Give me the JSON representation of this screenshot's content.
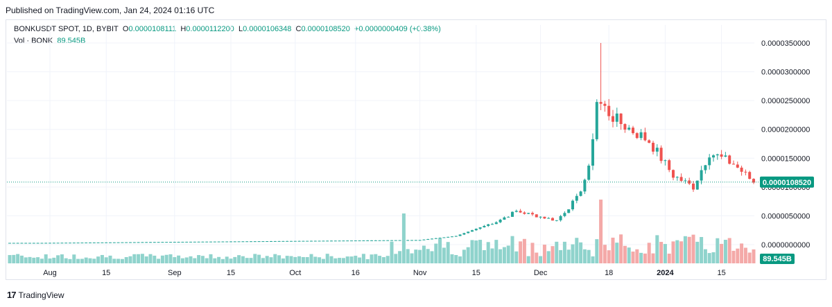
{
  "header": {
    "published": "Published on TradingView.com, Jan 24, 2024 01:16 UTC"
  },
  "legend": {
    "symbol": "BONKUSDT SPOT, 1D, BYBIT",
    "o_label": "O",
    "o": "0.0000108111",
    "h_label": "H",
    "h": "0.0000112200",
    "l_label": "L",
    "l": "0.0000106348",
    "c_label": "C",
    "c": "0.0000108520",
    "change": "+0.0000000409 (+0.38%)",
    "vol_label": "Vol · BONK",
    "vol": "89.545B"
  },
  "footer": {
    "brand": "TradingView"
  },
  "colors": {
    "up": "#26a69a",
    "down": "#ef5350",
    "vol_up": "#8fd3cc",
    "vol_down": "#f4a9a8",
    "price_tag": "#089981"
  },
  "chart_data": {
    "type": "candlestick",
    "symbol": "BONKUSDT",
    "y_ticks": [
      "0.0000000000",
      "0.0000050000",
      "0.0000100000",
      "0.0000150000",
      "0.0000200000",
      "0.0000250000",
      "0.0000300000",
      "0.0000350000"
    ],
    "ylim": [
      0,
      3.55e-05
    ],
    "x_ticks": [
      "Aug",
      "15",
      "Sep",
      "15",
      "Oct",
      "16",
      "Nov",
      "15",
      "Dec",
      "18",
      "2024",
      "15"
    ],
    "last_price": "0.0000108520",
    "last_volume": "89.545B",
    "price_keypoints": [
      {
        "date": "2023-07-30",
        "close": 3e-07
      },
      {
        "date": "2023-11-01",
        "close": 8e-07
      },
      {
        "date": "2023-11-10",
        "close": 1.5e-06
      },
      {
        "date": "2023-11-20",
        "close": 4e-06
      },
      {
        "date": "2023-11-25",
        "close": 5.8e-06
      },
      {
        "date": "2023-12-05",
        "close": 4.2e-06
      },
      {
        "date": "2023-12-10",
        "close": 8e-06
      },
      {
        "date": "2023-12-13",
        "close": 1.3e-05
      },
      {
        "date": "2023-12-15",
        "close": 2.5e-05
      },
      {
        "date": "2023-12-16",
        "high": 3.5e-05
      },
      {
        "date": "2023-12-20",
        "close": 2.15e-05
      },
      {
        "date": "2023-12-28",
        "close": 1.8e-05
      },
      {
        "date": "2024-01-03",
        "close": 1.2e-05
      },
      {
        "date": "2024-01-08",
        "close": 1e-05
      },
      {
        "date": "2024-01-12",
        "close": 1.6e-05
      },
      {
        "date": "2024-01-18",
        "close": 1.4e-05
      },
      {
        "date": "2024-01-23",
        "close": 1.0852e-05
      }
    ]
  }
}
